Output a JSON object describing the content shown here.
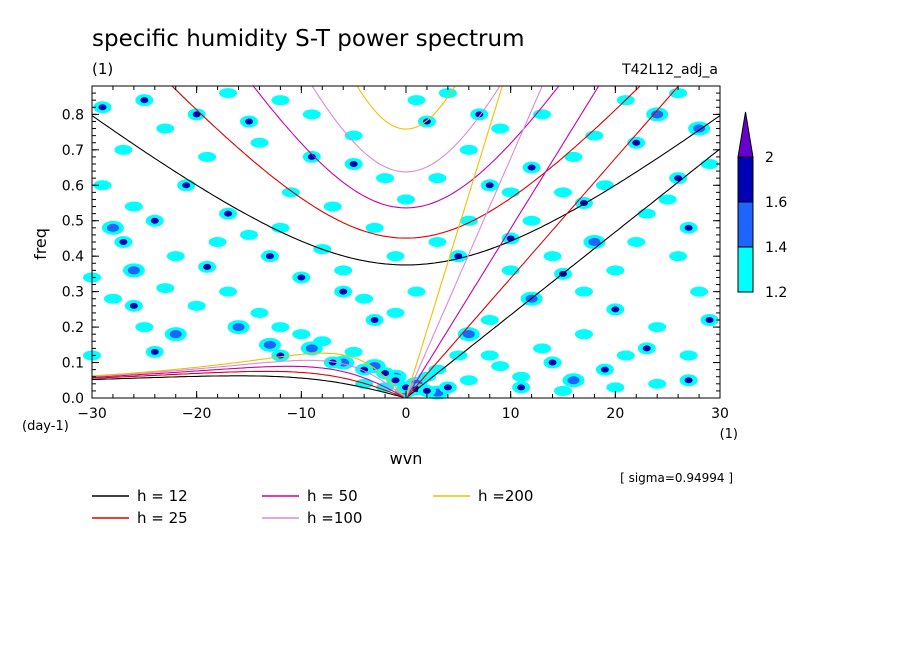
{
  "chart_data": {
    "type": "heatmap",
    "title": "specific humidity S-T power spectrum",
    "subtitle_left": "(1)",
    "subtitle_right": "T42L12_adj_a",
    "xlabel": "wvn",
    "ylabel": "freq",
    "x_unit": "(1)",
    "y_unit": "(day-1)",
    "xlim": [
      -30,
      30
    ],
    "ylim": [
      0,
      0.88
    ],
    "xticks": [
      -30,
      -20,
      -10,
      0,
      10,
      20,
      30
    ],
    "yticks": [
      0.0,
      0.1,
      0.2,
      0.3,
      0.4,
      0.5,
      0.6,
      0.7,
      0.8
    ],
    "ytick_labels": [
      "0.0",
      "0.1",
      "0.2",
      "0.3",
      "0.4",
      "0.5",
      "0.6",
      "0.7",
      "0.8"
    ],
    "xtick_labels": [
      "-30",
      "-20",
      "-10",
      "0",
      "10",
      "20",
      "30"
    ],
    "colorbar": {
      "levels": [
        "1.2",
        "1.4",
        "1.6",
        "2"
      ],
      "colors": [
        "#00ffff",
        "#1e64ff",
        "#0000b4",
        "#6600cc"
      ]
    },
    "sigma_note": "[ sigma=0.94994 ]",
    "dispersion_curves": [
      {
        "label": "h = 12",
        "h": 12,
        "color": "#000000"
      },
      {
        "label": "h = 25",
        "h": 25,
        "color": "#e00000"
      },
      {
        "label": "h = 50",
        "h": 50,
        "color": "#cc00aa"
      },
      {
        "label": "h =100",
        "h": 100,
        "color": "#dd88dd"
      },
      {
        "label": "h =200",
        "h": 200,
        "color": "#f0c000"
      }
    ],
    "power_patches": [
      {
        "level": 2,
        "cells": [
          [
            -29,
            0.82
          ],
          [
            -25,
            0.84
          ],
          [
            -20,
            0.8
          ],
          [
            -15,
            0.78
          ],
          [
            -9,
            0.68
          ],
          [
            -5,
            0.66
          ],
          [
            2,
            0.78
          ],
          [
            7,
            0.8
          ],
          [
            -27,
            0.44
          ],
          [
            -24,
            0.5
          ],
          [
            -21,
            0.6
          ],
          [
            -17,
            0.52
          ],
          [
            -13,
            0.4
          ],
          [
            -10,
            0.34
          ],
          [
            -6,
            0.3
          ],
          [
            -3,
            0.22
          ],
          [
            -19,
            0.37
          ],
          [
            -26,
            0.26
          ],
          [
            -24,
            0.13
          ],
          [
            -12,
            0.12
          ],
          [
            -7,
            0.1
          ],
          [
            -4,
            0.08
          ],
          [
            -2,
            0.07
          ],
          [
            -1,
            0.05
          ],
          [
            0,
            0.03
          ],
          [
            1,
            0.025
          ],
          [
            2,
            0.02
          ],
          [
            4,
            0.03
          ],
          [
            8,
            0.6
          ],
          [
            12,
            0.65
          ],
          [
            17,
            0.55
          ],
          [
            22,
            0.72
          ],
          [
            27,
            0.48
          ],
          [
            29,
            0.22
          ],
          [
            26,
            0.62
          ],
          [
            20,
            0.25
          ],
          [
            15,
            0.35
          ],
          [
            10,
            0.45
          ],
          [
            5,
            0.4
          ],
          [
            14,
            0.1
          ],
          [
            19,
            0.08
          ],
          [
            23,
            0.14
          ],
          [
            27,
            0.05
          ],
          [
            11,
            0.03
          ]
        ]
      },
      {
        "level": 1.6,
        "cells": [
          [
            -28,
            0.48
          ],
          [
            -26,
            0.36
          ],
          [
            -22,
            0.18
          ],
          [
            -16,
            0.2
          ],
          [
            -13,
            0.15
          ],
          [
            -9,
            0.14
          ],
          [
            -6,
            0.1
          ],
          [
            -3,
            0.09
          ],
          [
            -1,
            0.06
          ],
          [
            0,
            0.02
          ],
          [
            1,
            0.04
          ],
          [
            3,
            0.015
          ],
          [
            24,
            0.8
          ],
          [
            28,
            0.76
          ],
          [
            18,
            0.44
          ],
          [
            12,
            0.28
          ],
          [
            6,
            0.18
          ],
          [
            16,
            0.05
          ]
        ]
      },
      {
        "level": 1.4,
        "cells": [
          [
            -30,
            0.12
          ],
          [
            -29,
            0.6
          ],
          [
            -27,
            0.7
          ],
          [
            -23,
            0.76
          ],
          [
            -19,
            0.68
          ],
          [
            -14,
            0.72
          ],
          [
            -11,
            0.58
          ],
          [
            -7,
            0.54
          ],
          [
            -3,
            0.48
          ],
          [
            -1,
            0.4
          ],
          [
            3,
            0.62
          ],
          [
            6,
            0.7
          ],
          [
            9,
            0.76
          ],
          [
            13,
            0.8
          ],
          [
            16,
            0.68
          ],
          [
            19,
            0.6
          ],
          [
            23,
            0.52
          ],
          [
            26,
            0.4
          ],
          [
            28,
            0.3
          ],
          [
            24,
            0.2
          ],
          [
            21,
            0.12
          ],
          [
            17,
            0.18
          ],
          [
            13,
            0.14
          ],
          [
            9,
            0.09
          ],
          [
            6,
            0.05
          ],
          [
            3,
            0.08
          ],
          [
            -30,
            0.34
          ],
          [
            -28,
            0.28
          ],
          [
            -25,
            0.2
          ],
          [
            -23,
            0.31
          ],
          [
            -20,
            0.26
          ],
          [
            -17,
            0.3
          ],
          [
            -14,
            0.24
          ],
          [
            -12,
            0.2
          ],
          [
            -10,
            0.18
          ],
          [
            -8,
            0.16
          ],
          [
            -5,
            0.13
          ],
          [
            -4,
            0.04
          ],
          [
            -2,
            0.03
          ],
          [
            2,
            0.06
          ],
          [
            5,
            0.12
          ],
          [
            8,
            0.22
          ],
          [
            10,
            0.36
          ],
          [
            14,
            0.4
          ],
          [
            17,
            0.3
          ],
          [
            20,
            0.36
          ],
          [
            22,
            0.44
          ],
          [
            25,
            0.56
          ],
          [
            29,
            0.66
          ],
          [
            27,
            0.12
          ],
          [
            24,
            0.04
          ],
          [
            20,
            0.03
          ],
          [
            15,
            0.02
          ],
          [
            11,
            0.06
          ],
          [
            8,
            0.12
          ],
          [
            -18,
            0.44
          ],
          [
            -22,
            0.4
          ],
          [
            -26,
            0.54
          ],
          [
            -15,
            0.46
          ],
          [
            -12,
            0.48
          ],
          [
            -8,
            0.42
          ],
          [
            -6,
            0.36
          ],
          [
            -4,
            0.28
          ],
          [
            -1,
            0.24
          ],
          [
            1,
            0.3
          ],
          [
            3,
            0.44
          ],
          [
            6,
            0.5
          ],
          [
            0,
            0.56
          ],
          [
            -2,
            0.62
          ],
          [
            -5,
            0.74
          ],
          [
            -9,
            0.8
          ],
          [
            -12,
            0.84
          ],
          [
            -17,
            0.86
          ],
          [
            1,
            0.84
          ],
          [
            4,
            0.86
          ],
          [
            10,
            0.58
          ],
          [
            12,
            0.5
          ],
          [
            15,
            0.58
          ],
          [
            18,
            0.74
          ],
          [
            21,
            0.84
          ],
          [
            26,
            0.86
          ]
        ]
      }
    ]
  }
}
